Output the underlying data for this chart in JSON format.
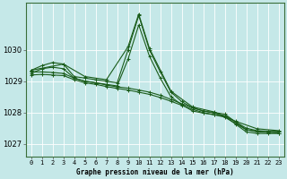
{
  "title": "Graphe pression niveau de la mer (hPa)",
  "bg_color": "#c5e8e8",
  "plot_bg_color": "#c5e8e8",
  "grid_color": "#ffffff",
  "border_color": "#4a7a4a",
  "line_color": "#1a5c1a",
  "xlim": [
    -0.5,
    23.5
  ],
  "ylim": [
    1026.6,
    1031.5
  ],
  "yticks": [
    1027,
    1028,
    1029,
    1030
  ],
  "xtick_labels": [
    "0",
    "1",
    "2",
    "3",
    "4",
    "5",
    "6",
    "7",
    "8",
    "9",
    "10",
    "11",
    "12",
    "13",
    "14",
    "15",
    "16",
    "17",
    "18",
    "19",
    "20",
    "21",
    "22",
    "23"
  ],
  "series": [
    {
      "x": [
        0,
        1,
        2,
        3,
        4,
        5,
        6,
        7,
        8,
        9,
        10,
        11,
        12,
        13,
        14,
        15,
        16,
        17,
        18,
        19,
        20,
        21,
        22,
        23
      ],
      "y": [
        1029.35,
        1029.5,
        1029.6,
        1029.55,
        1029.15,
        1029.1,
        1029.05,
        1029.0,
        1028.95,
        1030.0,
        1031.1,
        1030.0,
        1029.3,
        1028.65,
        1028.35,
        1028.15,
        1028.05,
        1028.0,
        1027.95,
        1027.7,
        1027.45,
        1027.4,
        1027.4,
        1027.4
      ]
    },
    {
      "x": [
        0,
        1,
        2,
        3,
        4,
        5,
        6,
        7,
        8,
        9,
        10,
        11,
        12,
        13,
        14,
        15,
        16,
        17,
        18,
        19,
        20,
        21,
        22,
        23
      ],
      "y": [
        1029.25,
        1029.4,
        1029.45,
        1029.4,
        1029.1,
        1029.0,
        1028.95,
        1028.9,
        1028.85,
        1029.7,
        1030.8,
        1029.8,
        1029.1,
        1028.5,
        1028.25,
        1028.05,
        1027.98,
        1027.93,
        1027.88,
        1027.63,
        1027.38,
        1027.33,
        1027.33,
        1027.33
      ]
    },
    {
      "x": [
        0,
        1,
        2,
        3,
        4,
        5,
        6,
        7,
        8,
        9,
        10,
        11,
        12,
        13,
        14,
        15,
        16,
        17,
        18,
        19,
        20,
        21,
        22,
        23
      ],
      "y": [
        1029.3,
        1029.3,
        1029.28,
        1029.25,
        1029.1,
        1029.0,
        1028.95,
        1028.88,
        1028.82,
        1028.78,
        1028.72,
        1028.65,
        1028.55,
        1028.42,
        1028.28,
        1028.15,
        1028.05,
        1027.98,
        1027.9,
        1027.7,
        1027.5,
        1027.42,
        1027.4,
        1027.38
      ]
    },
    {
      "x": [
        0,
        1,
        2,
        3,
        4,
        5,
        6,
        7,
        8,
        9,
        10,
        11,
        12,
        13,
        14,
        15,
        16,
        17,
        18,
        19,
        20,
        21,
        22,
        23
      ],
      "y": [
        1029.2,
        1029.22,
        1029.2,
        1029.18,
        1029.05,
        1028.95,
        1028.9,
        1028.83,
        1028.77,
        1028.72,
        1028.65,
        1028.58,
        1028.48,
        1028.36,
        1028.23,
        1028.1,
        1028.0,
        1027.93,
        1027.85,
        1027.65,
        1027.45,
        1027.38,
        1027.36,
        1027.34
      ]
    },
    {
      "x": [
        0,
        3,
        5,
        7,
        9,
        10,
        11,
        13,
        15,
        17,
        19,
        21,
        23
      ],
      "y": [
        1029.35,
        1029.55,
        1029.15,
        1029.05,
        1030.1,
        1031.15,
        1030.05,
        1028.68,
        1028.18,
        1028.02,
        1027.72,
        1027.48,
        1027.42
      ]
    }
  ]
}
